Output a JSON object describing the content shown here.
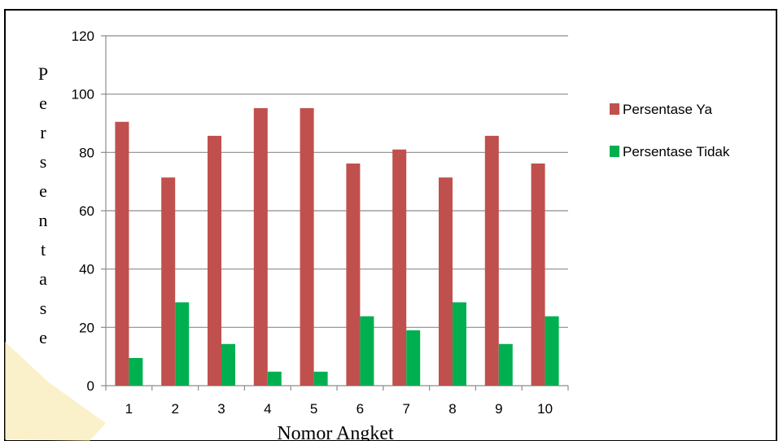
{
  "chart_data": {
    "type": "bar",
    "categories": [
      "1",
      "2",
      "3",
      "4",
      "5",
      "6",
      "7",
      "8",
      "9",
      "10"
    ],
    "series": [
      {
        "name": "Persentase Ya",
        "color": "#c0504d",
        "values": [
          90.5,
          71.4,
          85.7,
          95.2,
          95.2,
          76.2,
          81.0,
          71.4,
          85.7,
          76.2
        ]
      },
      {
        "name": "Persentase Tidak",
        "color": "#00b050",
        "values": [
          9.5,
          28.6,
          14.3,
          4.8,
          4.8,
          23.8,
          19.0,
          28.6,
          14.3,
          23.8
        ]
      }
    ],
    "xlabel": "Nomor Angket",
    "ylabel": "Persentase",
    "ylim": [
      0,
      120
    ],
    "yticks": [
      0,
      20,
      40,
      60,
      80,
      100,
      120
    ],
    "grid": true,
    "legend": "right"
  }
}
